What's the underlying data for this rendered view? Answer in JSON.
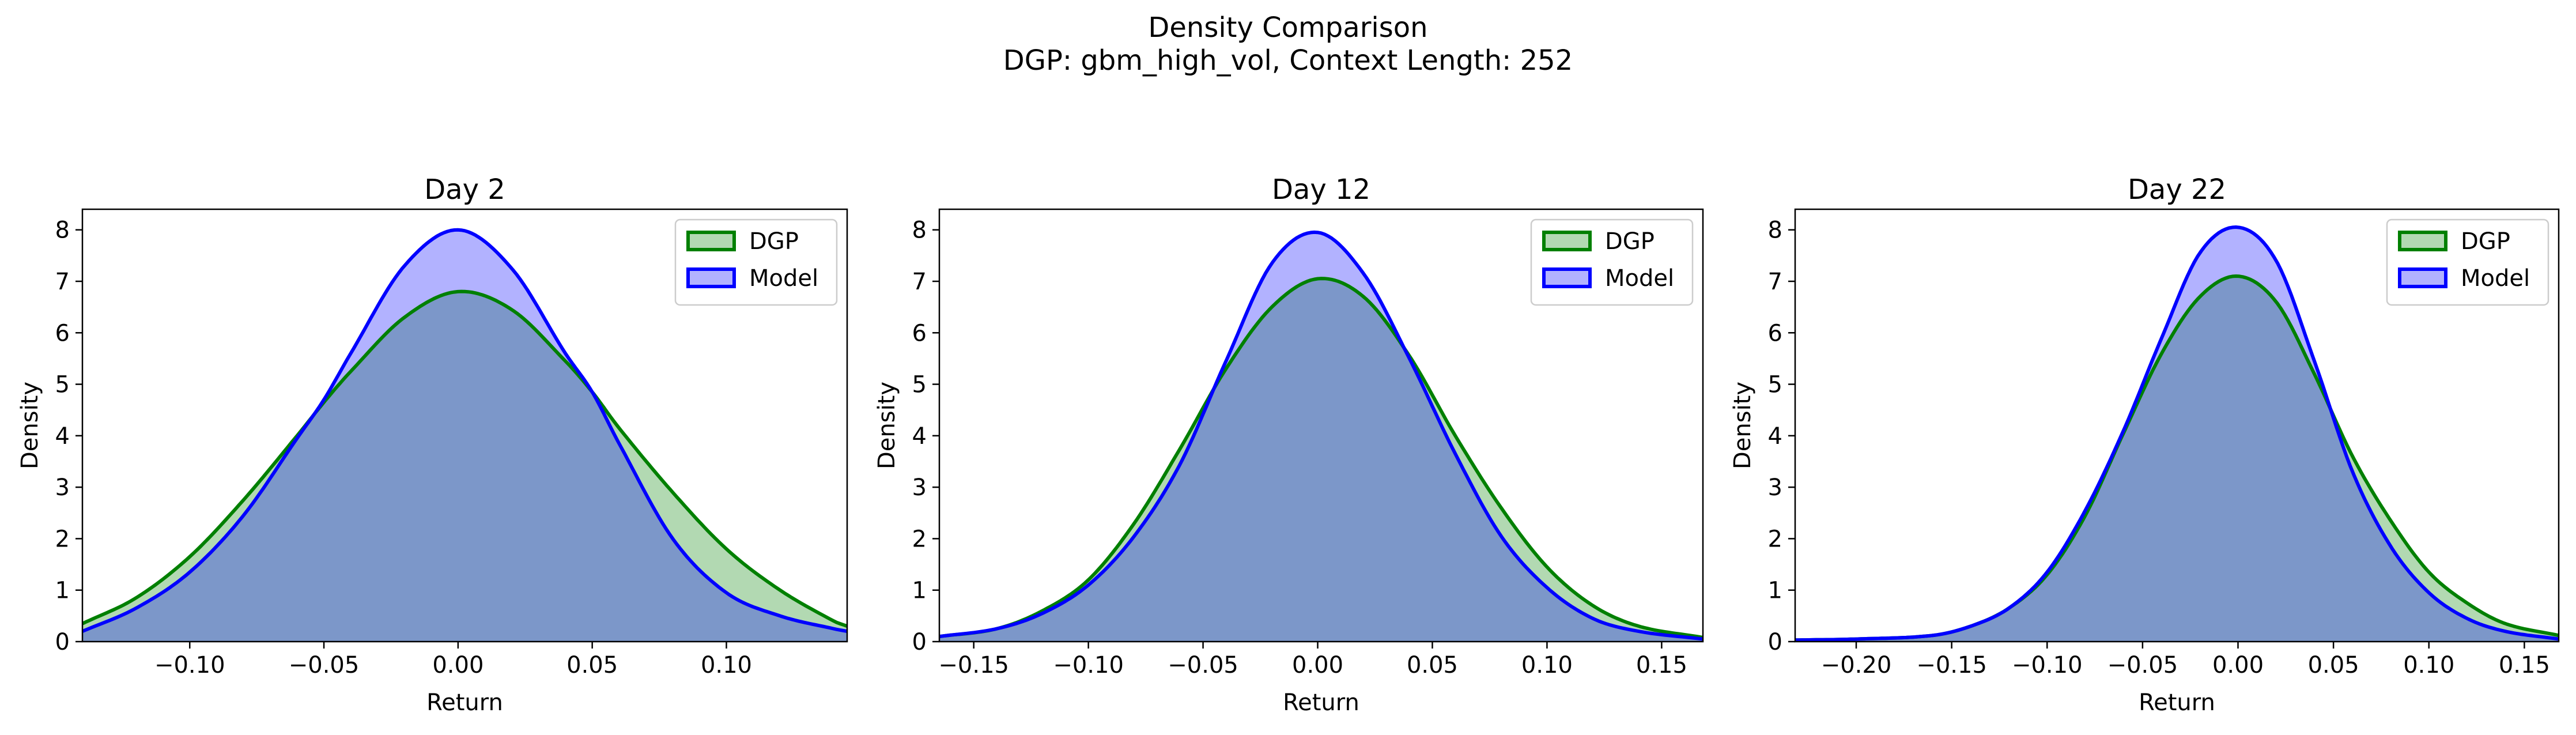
{
  "figure": {
    "title_line1": "Density Comparison",
    "title_line2": "DGP: gbm_high_vol, Context Length: 252"
  },
  "colors": {
    "dgp_line": "#008000",
    "dgp_fill": "#008000",
    "model_line": "#0000ff",
    "model_fill": "#0000ff",
    "overlap": "#7d98ca"
  },
  "chart_data": [
    {
      "type": "area",
      "title": "Day 2",
      "xlabel": "Return",
      "ylabel": "Density",
      "xlim": [
        -0.14,
        0.145
      ],
      "ylim": [
        0,
        8.4
      ],
      "xticks": [
        -0.1,
        -0.05,
        0.0,
        0.05,
        0.1
      ],
      "xtick_labels": [
        "−0.10",
        "−0.05",
        "0.00",
        "0.05",
        "0.10"
      ],
      "yticks": [
        0,
        1,
        2,
        3,
        4,
        5,
        6,
        7,
        8
      ],
      "ytick_labels": [
        "0",
        "1",
        "2",
        "3",
        "4",
        "5",
        "6",
        "7",
        "8"
      ],
      "legend_position": "top-right",
      "series": [
        {
          "name": "DGP",
          "x": [
            -0.14,
            -0.12,
            -0.1,
            -0.08,
            -0.06,
            -0.05,
            -0.04,
            -0.02,
            0.0,
            0.02,
            0.04,
            0.05,
            0.06,
            0.08,
            0.1,
            0.12,
            0.14,
            0.145
          ],
          "y": [
            0.35,
            0.85,
            1.65,
            2.75,
            4.0,
            4.65,
            5.25,
            6.3,
            6.8,
            6.45,
            5.45,
            4.85,
            4.15,
            2.9,
            1.8,
            1.0,
            0.4,
            0.3
          ]
        },
        {
          "name": "Model",
          "x": [
            -0.14,
            -0.12,
            -0.1,
            -0.08,
            -0.06,
            -0.05,
            -0.04,
            -0.02,
            0.0,
            0.02,
            0.04,
            0.05,
            0.06,
            0.08,
            0.1,
            0.12,
            0.14,
            0.145
          ],
          "y": [
            0.2,
            0.65,
            1.35,
            2.45,
            3.95,
            4.7,
            5.6,
            7.3,
            8.0,
            7.25,
            5.6,
            4.85,
            3.85,
            2.0,
            0.95,
            0.5,
            0.25,
            0.2
          ]
        }
      ]
    },
    {
      "type": "area",
      "title": "Day 12",
      "xlabel": "Return",
      "ylabel": "Density",
      "xlim": [
        -0.165,
        0.168
      ],
      "ylim": [
        0,
        8.4
      ],
      "xticks": [
        -0.15,
        -0.1,
        -0.05,
        0.0,
        0.05,
        0.1,
        0.15
      ],
      "xtick_labels": [
        "−0.15",
        "−0.10",
        "−0.05",
        "0.00",
        "0.05",
        "0.10",
        "0.15"
      ],
      "yticks": [
        0,
        1,
        2,
        3,
        4,
        5,
        6,
        7,
        8
      ],
      "ytick_labels": [
        "0",
        "1",
        "2",
        "3",
        "4",
        "5",
        "6",
        "7",
        "8"
      ],
      "legend_position": "top-right",
      "series": [
        {
          "name": "DGP",
          "x": [
            -0.165,
            -0.14,
            -0.12,
            -0.1,
            -0.08,
            -0.06,
            -0.04,
            -0.02,
            0.0,
            0.02,
            0.04,
            0.06,
            0.08,
            0.1,
            0.12,
            0.14,
            0.168
          ],
          "y": [
            0.1,
            0.25,
            0.6,
            1.2,
            2.3,
            3.75,
            5.3,
            6.5,
            7.05,
            6.7,
            5.55,
            4.0,
            2.6,
            1.45,
            0.7,
            0.3,
            0.08
          ]
        },
        {
          "name": "Model",
          "x": [
            -0.165,
            -0.14,
            -0.12,
            -0.1,
            -0.08,
            -0.06,
            -0.04,
            -0.02,
            0.0,
            0.02,
            0.04,
            0.06,
            0.08,
            0.1,
            0.12,
            0.14,
            0.168
          ],
          "y": [
            0.1,
            0.25,
            0.55,
            1.1,
            2.05,
            3.45,
            5.45,
            7.35,
            7.95,
            7.15,
            5.5,
            3.65,
            2.05,
            1.05,
            0.45,
            0.2,
            0.05
          ]
        }
      ]
    },
    {
      "type": "area",
      "title": "Day 22",
      "xlabel": "Return",
      "ylabel": "Density",
      "xlim": [
        -0.232,
        0.168
      ],
      "ylim": [
        0,
        8.4
      ],
      "xticks": [
        -0.2,
        -0.15,
        -0.1,
        -0.05,
        0.0,
        0.05,
        0.1,
        0.15
      ],
      "xtick_labels": [
        "−0.20",
        "−0.15",
        "−0.10",
        "−0.05",
        "0.00",
        "0.05",
        "0.10",
        "0.15"
      ],
      "yticks": [
        0,
        1,
        2,
        3,
        4,
        5,
        6,
        7,
        8
      ],
      "ytick_labels": [
        "0",
        "1",
        "2",
        "3",
        "4",
        "5",
        "6",
        "7",
        "8"
      ],
      "legend_position": "top-right",
      "series": [
        {
          "name": "DGP",
          "x": [
            -0.232,
            -0.2,
            -0.16,
            -0.14,
            -0.12,
            -0.1,
            -0.08,
            -0.06,
            -0.04,
            -0.02,
            0.0,
            0.02,
            0.04,
            0.06,
            0.08,
            0.1,
            0.12,
            0.14,
            0.168
          ],
          "y": [
            0.03,
            0.05,
            0.12,
            0.3,
            0.65,
            1.3,
            2.45,
            4.05,
            5.6,
            6.7,
            7.1,
            6.6,
            5.2,
            3.6,
            2.35,
            1.35,
            0.75,
            0.35,
            0.12
          ]
        },
        {
          "name": "Model",
          "x": [
            -0.232,
            -0.2,
            -0.16,
            -0.14,
            -0.12,
            -0.1,
            -0.08,
            -0.06,
            -0.04,
            -0.02,
            0.0,
            0.02,
            0.04,
            0.06,
            0.08,
            0.1,
            0.12,
            0.14,
            0.168
          ],
          "y": [
            0.03,
            0.05,
            0.12,
            0.3,
            0.65,
            1.35,
            2.55,
            4.1,
            5.9,
            7.55,
            8.05,
            7.4,
            5.45,
            3.3,
            1.85,
            0.95,
            0.45,
            0.2,
            0.05
          ]
        }
      ]
    }
  ]
}
